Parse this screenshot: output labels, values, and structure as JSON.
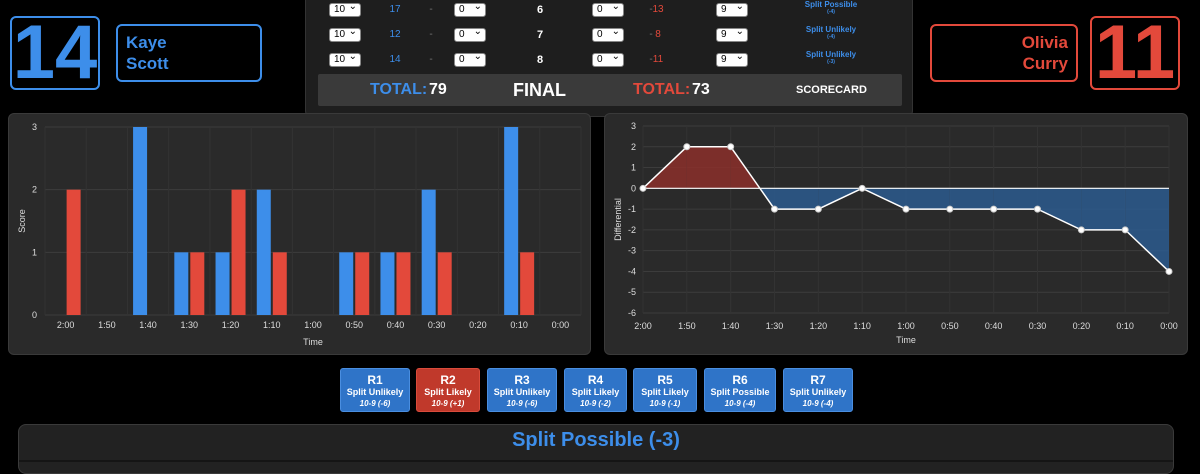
{
  "fighters": {
    "blue": {
      "score": "14",
      "first_name": "Kaye",
      "last_name": "Scott",
      "color": "#3d8eea"
    },
    "red": {
      "score": "11",
      "first_name": "Olivia",
      "last_name": "Curry",
      "color": "#e3493b"
    }
  },
  "scorecard": {
    "rows": [
      {
        "blue_select": "10",
        "blue_points": "17",
        "blue_sub_select": "0",
        "round": "6",
        "red_sub_select": "0",
        "red_points": "13",
        "red_select": "9",
        "note": "Split Possible",
        "note_sub": "(-4)"
      },
      {
        "blue_select": "10",
        "blue_points": "12",
        "blue_sub_select": "0",
        "round": "7",
        "red_sub_select": "0",
        "red_points": "8",
        "red_select": "9",
        "note": "Split Unlikely",
        "note_sub": "(-4)"
      },
      {
        "blue_select": "10",
        "blue_points": "14",
        "blue_sub_select": "0",
        "round": "8",
        "red_sub_select": "0",
        "red_points": "11",
        "red_select": "9",
        "note": "Split Unlikely",
        "note_sub": "(-3)"
      }
    ],
    "dash": "-",
    "total_label": "TOTAL:",
    "blue_total": "79",
    "red_total": "73",
    "final_label": "FINAL",
    "scorecard_link": "SCORECARD"
  },
  "chart_data": [
    {
      "type": "bar",
      "xlabel": "Time",
      "ylabel": "Score",
      "categories": [
        "2:00",
        "1:50",
        "1:40",
        "1:30",
        "1:20",
        "1:10",
        "1:00",
        "0:50",
        "0:40",
        "0:30",
        "0:20",
        "0:10",
        "0:00"
      ],
      "ylim": [
        0,
        3
      ],
      "yticks": [
        "0",
        "1",
        "2",
        "3"
      ],
      "series": [
        {
          "values": [
            0,
            0,
            3,
            1,
            1,
            2,
            0,
            1,
            1,
            2,
            0,
            3,
            0
          ],
          "color": "#3d8eea"
        },
        {
          "values": [
            2,
            0,
            0,
            1,
            2,
            1,
            0,
            1,
            1,
            1,
            0,
            1,
            0
          ],
          "color": "#e3493b"
        }
      ],
      "grid": true
    },
    {
      "type": "area",
      "xlabel": "Time",
      "ylabel": "Differential",
      "x": [
        "2:00",
        "1:50",
        "1:40",
        "1:30",
        "1:20",
        "1:10",
        "1:00",
        "0:50",
        "0:40",
        "0:30",
        "0:20",
        "0:10",
        "0:00"
      ],
      "values": [
        0,
        2,
        2,
        -1,
        -1,
        0,
        -1,
        -1,
        -1,
        -1,
        -2,
        -2,
        -4
      ],
      "ylim": [
        -6,
        3
      ],
      "yticks": [
        "3",
        "2",
        "1",
        "0",
        "-1",
        "-2",
        "-3",
        "-4",
        "-5",
        "-6"
      ],
      "positive_color": "#8b2f2a",
      "negative_color": "#2c5a8e",
      "grid": true
    }
  ],
  "rounds": [
    {
      "title": "R1",
      "verdict": "Split Unlikely",
      "score": "10-9 (-6)",
      "color": "blue"
    },
    {
      "title": "R2",
      "verdict": "Split Likely",
      "score": "10-9 (+1)",
      "color": "red"
    },
    {
      "title": "R3",
      "verdict": "Split Unlikely",
      "score": "10-9 (-6)",
      "color": "blue"
    },
    {
      "title": "R4",
      "verdict": "Split Likely",
      "score": "10-9 (-2)",
      "color": "blue"
    },
    {
      "title": "R5",
      "verdict": "Split Likely",
      "score": "10-9 (-1)",
      "color": "blue"
    },
    {
      "title": "R6",
      "verdict": "Split Possible",
      "score": "10-9 (-4)",
      "color": "blue"
    },
    {
      "title": "R7",
      "verdict": "Split Unlikely",
      "score": "10-9 (-4)",
      "color": "blue"
    }
  ],
  "detail": {
    "title": "Split Possible (-3)"
  }
}
